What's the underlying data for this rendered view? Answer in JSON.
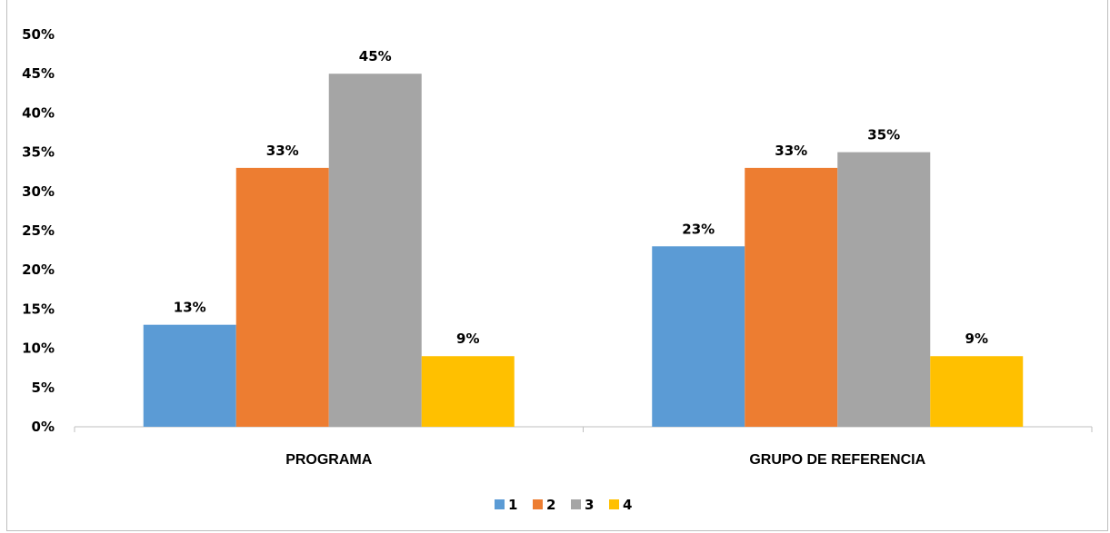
{
  "chart_data": {
    "type": "bar",
    "title": "",
    "categories": [
      "PROGRAMA",
      "GRUPO DE REFERENCIA"
    ],
    "series": [
      {
        "name": "1",
        "values": [
          13,
          23
        ],
        "labels": [
          "13%",
          "23%"
        ],
        "color": "#5b9bd5"
      },
      {
        "name": "2",
        "values": [
          33,
          33
        ],
        "labels": [
          "33%",
          "33%"
        ],
        "color": "#ed7d31"
      },
      {
        "name": "3",
        "values": [
          45,
          35
        ],
        "labels": [
          "45%",
          "35%"
        ],
        "color": "#a5a5a5"
      },
      {
        "name": "4",
        "values": [
          9,
          9
        ],
        "labels": [
          "9%",
          "9%"
        ],
        "color": "#ffc000"
      }
    ],
    "ylim": [
      0,
      50
    ],
    "yticks": [
      "0%",
      "5%",
      "10%",
      "15%",
      "20%",
      "25%",
      "30%",
      "35%",
      "40%",
      "45%",
      "50%"
    ],
    "xlabel": "",
    "ylabel": "",
    "grid": false,
    "legend_position": "bottom"
  }
}
